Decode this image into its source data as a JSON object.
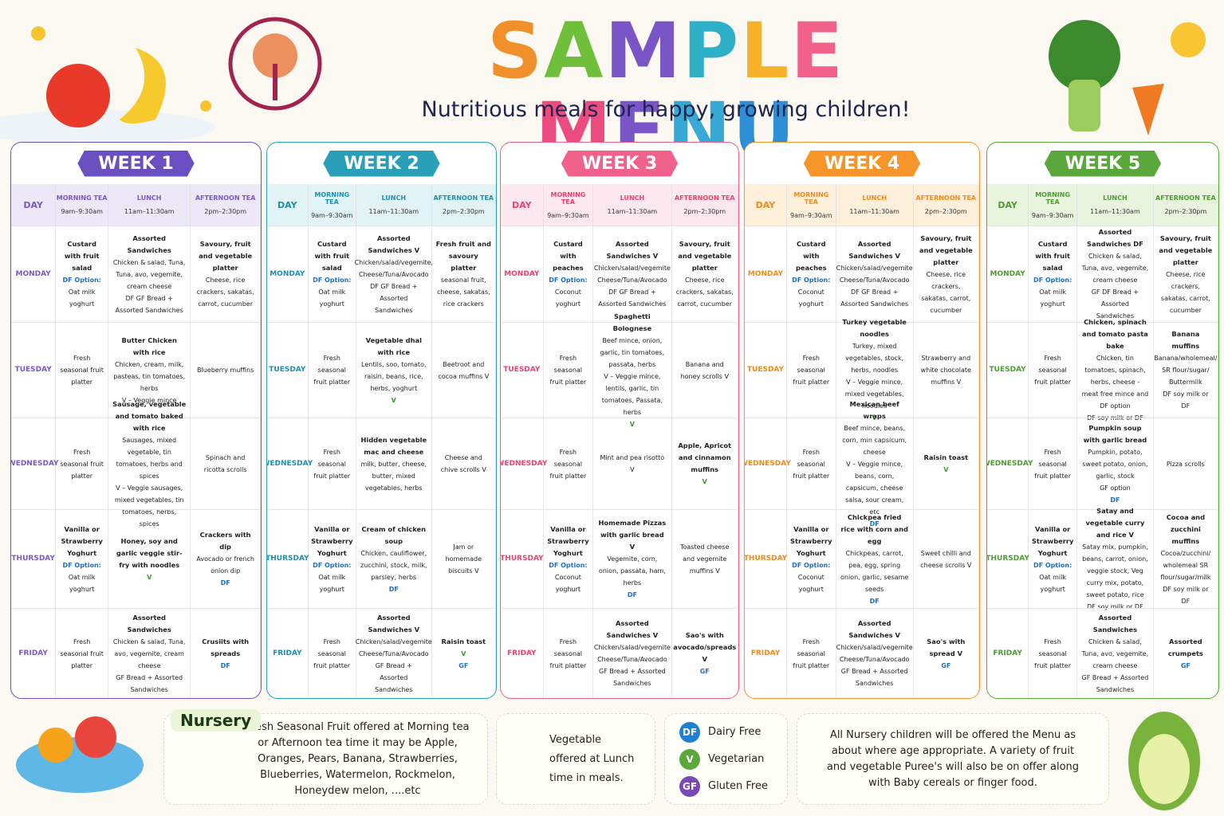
{
  "header": {
    "title": "SAMPLE MENU",
    "subtitle": "Nutritious meals for happy, growing children!"
  },
  "columns": [
    {
      "name": "DAY"
    },
    {
      "name": "MORNING TEA",
      "time": "9am–9:30am"
    },
    {
      "name": "LUNCH",
      "time": "11am–11:30am"
    },
    {
      "name": "AFTERNOON TEA",
      "time": "2pm–2:30pm"
    }
  ],
  "days": [
    "MONDAY",
    "TUESDAY",
    "WEDNESDAY",
    "THURSDAY",
    "FRIDAY"
  ],
  "weeks": [
    {
      "title": "WEEK 1",
      "menu": [
        [
          [
            "Custard with fruit salad",
            "DF Option:",
            "Oat milk yoghurt"
          ],
          [
            "Assorted Sandwiches",
            "Chicken & salad, Tuna, Tuna, avo, vegemite, cream cheese",
            "DF GF Bread + Assorted Sandwiches"
          ],
          [
            "Savoury, fruit and vegetable platter",
            "Cheese, rice crackers, sakatas, carrot, cucumber"
          ]
        ],
        [
          [
            "Fresh seasonal fruit platter"
          ],
          [
            "Butter Chicken with rice",
            "Chicken, cream, milk, pasteas, tin tomatoes, herbs",
            "V – Veggie mince"
          ],
          [
            "Blueberry muffins"
          ]
        ],
        [
          [
            "Fresh seasonal fruit platter"
          ],
          [
            "Sausage, vegetable and tomato baked with rice",
            "Sausages, mixed vegetable, tin tomatoes, herbs and spices",
            "V – Veggie sausages, mixed vegetables, tin tomatoes, herbs, spices"
          ],
          [
            "Spinach and ricotta scrolls"
          ]
        ],
        [
          [
            "Vanilla or Strawberry Yoghurt",
            "DF Option:",
            "Oat milk yoghurt"
          ],
          [
            "Honey, soy and garlic veggie stir-fry with noodles",
            "V"
          ],
          [
            "Crackers with dip",
            "Avocado or french onion dip",
            "DF"
          ]
        ],
        [
          [
            "Fresh seasonal fruit platter"
          ],
          [
            "Assorted Sandwiches",
            "Chicken & salad, Tuna, avo, vegemite, cream cheese",
            "GF Bread + Assorted Sandwiches"
          ],
          [
            "Crusiits with spreads",
            "DF"
          ]
        ]
      ]
    },
    {
      "title": "WEEK 2",
      "menu": [
        [
          [
            "Custard with fruit salad",
            "DF Option:",
            "Oat milk yoghurt"
          ],
          [
            "Assorted Sandwiches V",
            "Chicken/salad/vegemite, Cheese/Tuna/Avocado",
            "DF GF Bread + Assorted Sandwiches"
          ],
          [
            "Fresh fruit and savoury platter",
            "seasonal fruit, cheese, sakatas, rice crackers"
          ]
        ],
        [
          [
            "Fresh seasonal fruit platter"
          ],
          [
            "Vegetable dhal with rice",
            "Lentils, soo, tomato, raisin, beans, rice, herbs, yoghurt",
            "V"
          ],
          [
            "Beetroot and cocoa muffins V"
          ]
        ],
        [
          [
            "Fresh seasonal fruit platter"
          ],
          [
            "Hidden vegetable mac and cheese",
            "milk, butter, cheese, butter, mixed vegetables, herbs"
          ],
          [
            "Cheese and chive scrolls V"
          ]
        ],
        [
          [
            "Vanilla or Strawberry Yoghurt",
            "DF Option:",
            "Oat milk yoghurt"
          ],
          [
            "Cream of chicken soup",
            "Chicken, cauliflower, zucchini, stock, milk, parsley, herbs",
            "DF"
          ],
          [
            "Jam or homemade biscuits V"
          ]
        ],
        [
          [
            "Fresh seasonal fruit platter"
          ],
          [
            "Assorted Sandwiches V",
            "Chicken/salad/vegemite Cheese/Tuna/Avocado",
            "GF Bread + Assorted Sandwiches"
          ],
          [
            "Raisin toast",
            "V",
            "GF"
          ]
        ]
      ]
    },
    {
      "title": "WEEK 3",
      "menu": [
        [
          [
            "Custard with peaches",
            "DF Option:",
            "Coconut yoghurt"
          ],
          [
            "Assorted Sandwiches V",
            "Chicken/salad/vegemite Cheese/Tuna/Avocado",
            "DF GF Bread + Assorted Sandwiches"
          ],
          [
            "Savoury, fruit and vegetable platter",
            "Cheese, rice crackers, sakatas, carrot, cucumber"
          ]
        ],
        [
          [
            "Fresh seasonal fruit platter"
          ],
          [
            "Spaghetti Bolognese",
            "Beef mince, onion, garlic, tin tomatoes, passata, herbs",
            "V – Veggie mince, lentils, garlic, tin tomatoes, Passata, herbs",
            "V"
          ],
          [
            "Banana and honey scrolls V"
          ]
        ],
        [
          [
            "Fresh seasonal fruit platter"
          ],
          [
            "Mint and pea risotto V"
          ],
          [
            "Apple, Apricot and cinnamon muffins",
            "V"
          ]
        ],
        [
          [
            "Vanilla or Strawberry Yoghurt",
            "DF Option:",
            "Coconut yoghurt"
          ],
          [
            "Homemade Pizzas with garlic bread V",
            "Vegemite, corn, onion, passata, ham, herbs",
            "DF"
          ],
          [
            "Toasted cheese and vegemite muffins V"
          ]
        ],
        [
          [
            "Fresh seasonal fruit platter"
          ],
          [
            "Assorted Sandwiches V",
            "Chicken/salad/vegemite Cheese/Tuna/Avocado",
            "GF Bread + Assorted Sandwiches"
          ],
          [
            "Sao's with avocado/spreads V",
            "GF"
          ]
        ]
      ]
    },
    {
      "title": "WEEK 4",
      "menu": [
        [
          [
            "Custard with peaches",
            "DF Option:",
            "Coconut yoghurt"
          ],
          [
            "Assorted Sandwiches V",
            "Chicken/salad/vegemite Cheese/Tuna/Avocado",
            "DF GF Bread + Assorted Sandwiches"
          ],
          [
            "Savoury, fruit and vegetable platter",
            "Cheese, rice crackers, sakatas, carrot, cucumber"
          ]
        ],
        [
          [
            "Fresh seasonal fruit platter"
          ],
          [
            "Turkey vegetable noodles",
            "Turkey, mixed vegetables, stock, herbs, noodles",
            "V – Veggie mince, mixed vegetables, noodles",
            "V"
          ],
          [
            "Strawberry and white chocolate muffins V"
          ]
        ],
        [
          [
            "Fresh seasonal fruit platter"
          ],
          [
            "Mexican beef wraps",
            "Beef mince, beans, corn, min capsicum, cheese",
            "V – Veggie mince, beans, corn, capsicum, cheese salsa, sour cream, etc",
            "DF"
          ],
          [
            "Raisin toast",
            "V"
          ]
        ],
        [
          [
            "Vanilla or Strawberry Yoghurt",
            "DF Option:",
            "Coconut yoghurt"
          ],
          [
            "Chickpea fried rice with corn and egg",
            "Chickpeas, carrot, pea, egg, spring onion, garlic, sesame seeds",
            "DF"
          ],
          [
            "Sweet chilli and cheese scrolls V"
          ]
        ],
        [
          [
            "Fresh seasonal fruit platter"
          ],
          [
            "Assorted Sandwiches V",
            "Chicken/salad/vegemite Cheese/Tuna/Avocado",
            "GF Bread + Assorted Sandwiches"
          ],
          [
            "Sao's with spread V",
            "GF"
          ]
        ]
      ]
    },
    {
      "title": "WEEK 5",
      "menu": [
        [
          [
            "Custard with fruit salad",
            "DF Option:",
            "Oat milk yoghurt"
          ],
          [
            "Assorted Sandwiches DF",
            "Chicken & salad, Tuna, avo, vegemite, cream cheese",
            "GF DF Bread + Assorted Sandwiches"
          ],
          [
            "Savoury, fruit and vegetable platter",
            "Cheese, rice crackers, sakatas, carrot, cucumber"
          ]
        ],
        [
          [
            "Fresh seasonal fruit platter"
          ],
          [
            "Chicken, spinach and tomato pasta bake",
            "Chicken, tin tomatoes, spinach, herbs, cheese - meat free mince and DF option",
            "DF soy milk or DF"
          ],
          [
            "Banana muffins",
            "Banana/wholemeal/ SR flour/sugar/ Buttermilk",
            "DF soy milk or DF"
          ]
        ],
        [
          [
            "Fresh seasonal fruit platter"
          ],
          [
            "Pumpkin soup with garlic bread",
            "Pumpkin, potato, sweet potato, onion, garlic, stock",
            "GF option",
            "DF"
          ],
          [
            "Pizza scrolls"
          ]
        ],
        [
          [
            "Vanilla or Strawberry Yoghurt",
            "DF Option:",
            "Oat milk yoghurt"
          ],
          [
            "Satay and vegetable curry and rice V",
            "Satay mix, pumpkin, beans, carrot, onion, veggie stock, Veg curry mix, potato, sweet potato, rice",
            "DF soy milk or DF"
          ],
          [
            "Cocoa and zucchini muffins",
            "Cocoa/zucchini/ wholemeal SR flour/sugar/milk",
            "DF soy milk or DF"
          ]
        ],
        [
          [
            "Fresh seasonal fruit platter"
          ],
          [
            "Assorted Sandwiches",
            "Chicken & salad, Tuna, avo, vegemite, cream cheese",
            "GF Bread + Assorted Sandwiches"
          ],
          [
            "Assorted crumpets",
            "GF"
          ]
        ]
      ]
    }
  ],
  "footer": {
    "nursery_title": "Nursery",
    "nursery_text": "Fresh Seasonal Fruit offered at Morning tea or Afternoon tea time it may be Apple, Oranges, Pears, Banana, Strawberries, Blueberries, Watermelon, Rockmelon, Honeydew melon, ....etc",
    "vegetable_text": "Vegetable offered at Lunch time in meals.",
    "legend": [
      {
        "code": "DF",
        "label": "Dairy Free"
      },
      {
        "code": "V",
        "label": "Vegetarian"
      },
      {
        "code": "GF",
        "label": "Gluten Free"
      }
    ],
    "note": "All Nursery children will be offered the Menu as about where age appropriate. A variety of fruit and vegetable Puree's will also be on offer along with Baby cereals or finger food."
  }
}
